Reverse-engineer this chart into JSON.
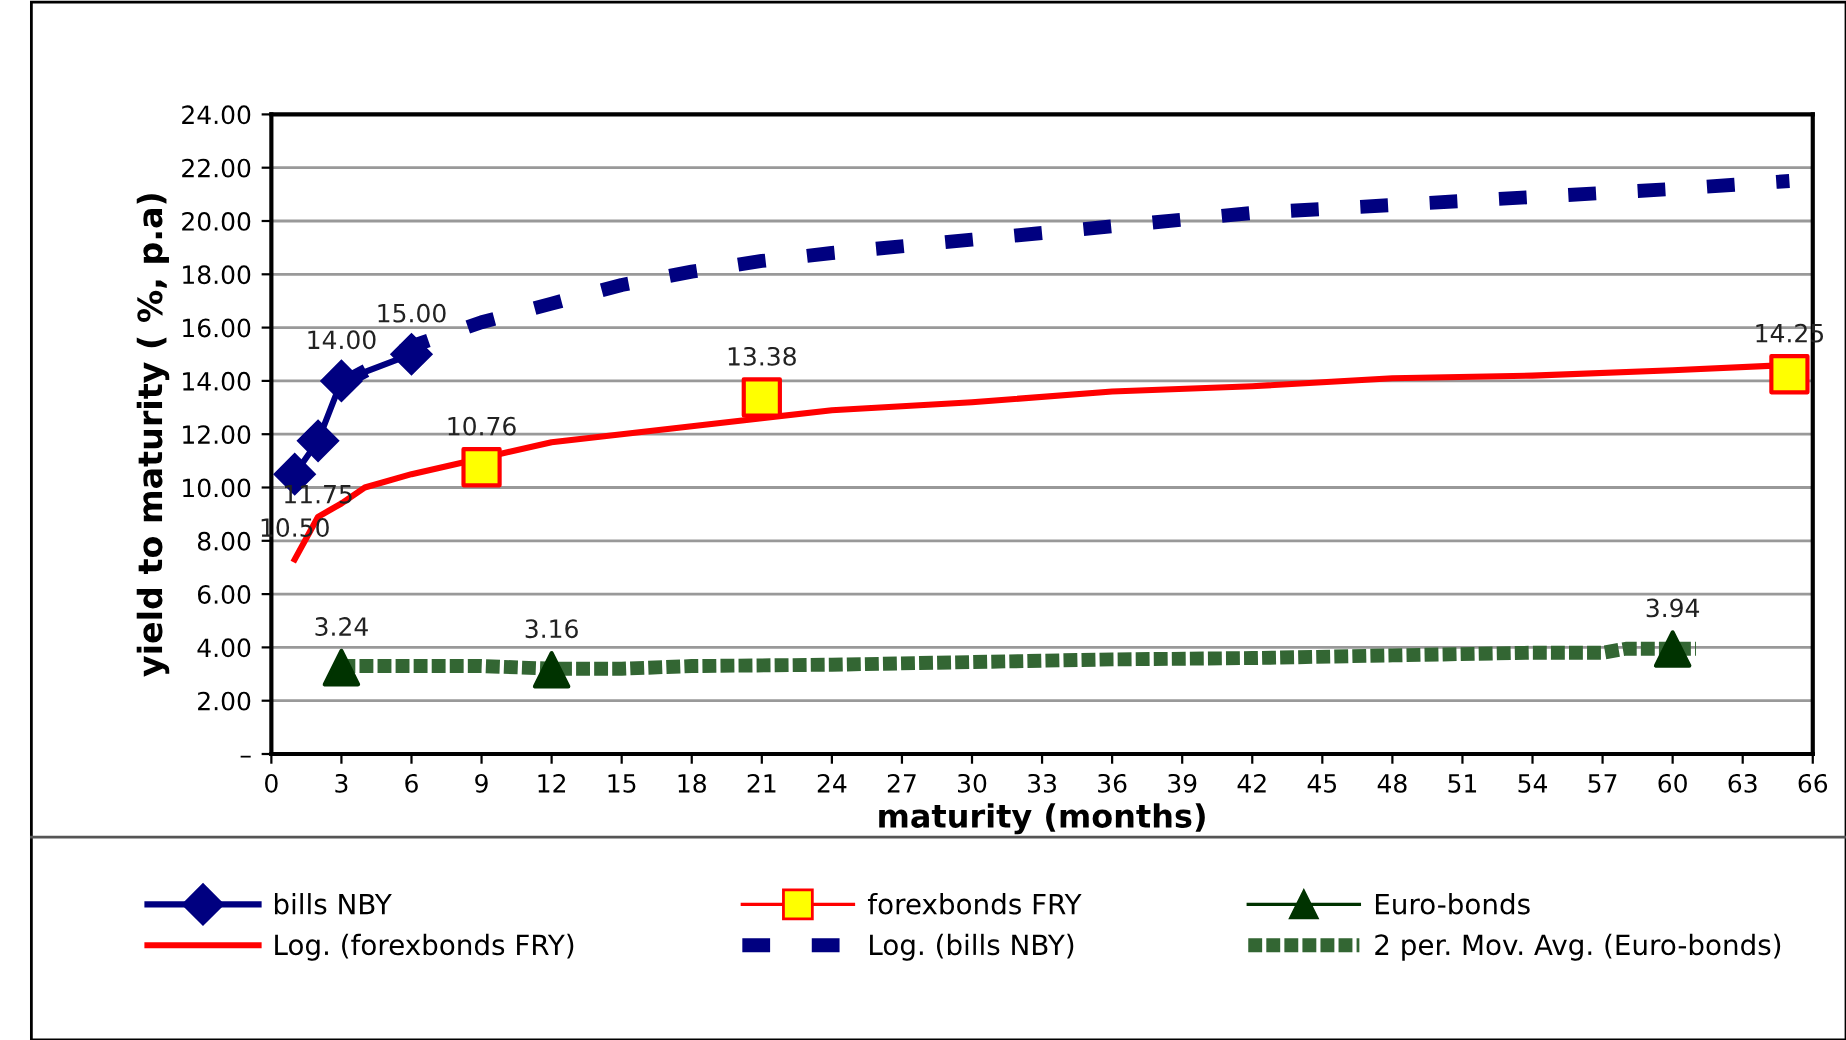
{
  "chart_data": {
    "type": "line",
    "xlabel": "maturity (months)",
    "ylabel": "yield to maturity ( %, p.a)",
    "xlim": [
      0,
      66
    ],
    "xticks": [
      0,
      3,
      6,
      9,
      12,
      15,
      18,
      21,
      24,
      27,
      30,
      33,
      36,
      39,
      42,
      45,
      48,
      51,
      54,
      57,
      60,
      63,
      66
    ],
    "ylim": [
      0,
      24
    ],
    "yticks": [
      {
        "value": 0,
        "label": "–"
      },
      {
        "value": 2,
        "label": "2.00"
      },
      {
        "value": 4,
        "label": "4.00"
      },
      {
        "value": 6,
        "label": "6.00"
      },
      {
        "value": 8,
        "label": "8.00"
      },
      {
        "value": 10,
        "label": "10.00"
      },
      {
        "value": 12,
        "label": "12.00"
      },
      {
        "value": 14,
        "label": "14.00"
      },
      {
        "value": 16,
        "label": "16.00"
      },
      {
        "value": 18,
        "label": "18.00"
      },
      {
        "value": 20,
        "label": "20.00"
      },
      {
        "value": 22,
        "label": "22.00"
      },
      {
        "value": 24,
        "label": "24.00"
      }
    ],
    "grid": "y",
    "legend": "bottom",
    "series": [
      {
        "name": "bills NBY",
        "color": "#000080",
        "marker": "diamond",
        "line_style": "solid",
        "x": [
          1,
          2,
          3,
          6
        ],
        "values": [
          10.5,
          11.75,
          14.0,
          15.0
        ],
        "value_labels": [
          "10.50",
          "11.75",
          "14.00",
          "15.00"
        ]
      },
      {
        "name": "forexbonds FRY",
        "type": "scatter",
        "color": "#ffff00",
        "marker": "square",
        "x": [
          9,
          21,
          65
        ],
        "values": [
          10.76,
          13.38,
          14.25
        ],
        "value_labels": [
          "10.76",
          "13.38",
          "14.25"
        ]
      },
      {
        "name": "Euro-bonds",
        "type": "scatter",
        "color": "#003300",
        "marker": "triangle",
        "x": [
          3,
          12,
          60
        ],
        "values": [
          3.24,
          3.16,
          3.94
        ],
        "value_labels": [
          "3.24",
          "3.16",
          "3.94"
        ]
      },
      {
        "name": "Log. (forexbonds FRY)",
        "color": "#ff0000",
        "line_style": "solid",
        "x": [
          1,
          2,
          3,
          4,
          6,
          9,
          12,
          15,
          18,
          21,
          24,
          30,
          36,
          42,
          48,
          54,
          60,
          65
        ],
        "values": [
          7.3,
          8.9,
          9.4,
          10.0,
          10.5,
          11.1,
          11.7,
          12.0,
          12.3,
          12.6,
          12.9,
          13.2,
          13.6,
          13.8,
          14.1,
          14.2,
          14.4,
          14.6
        ]
      },
      {
        "name": "Log. (bills NBY)",
        "color": "#000080",
        "line_style": "dashed",
        "x": [
          3,
          6,
          9,
          12,
          15,
          18,
          21,
          24,
          30,
          36,
          42,
          48,
          54,
          60,
          65
        ],
        "values": [
          13.9,
          15.3,
          16.2,
          16.9,
          17.6,
          18.1,
          18.5,
          18.8,
          19.3,
          19.8,
          20.3,
          20.6,
          20.9,
          21.2,
          21.5
        ]
      },
      {
        "name": "2 per. Mov. Avg. (Euro-bonds)",
        "color": "#336633",
        "line_style": "dotted",
        "x": [
          3,
          9,
          12,
          15,
          18,
          24,
          30,
          36,
          42,
          48,
          54,
          57,
          58,
          61
        ],
        "values": [
          3.3,
          3.3,
          3.2,
          3.2,
          3.3,
          3.35,
          3.45,
          3.55,
          3.6,
          3.7,
          3.8,
          3.8,
          3.95,
          3.95
        ]
      }
    ]
  }
}
